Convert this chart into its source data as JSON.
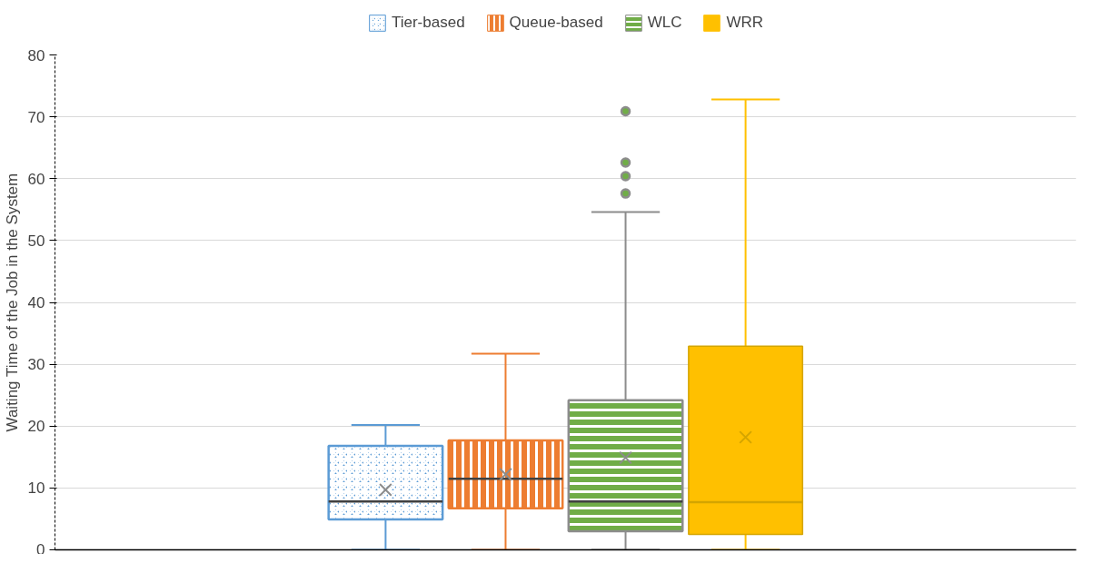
{
  "chart_data": {
    "type": "box",
    "ylabel": "Waiting Time of the Job in the System",
    "categories": [
      null
    ],
    "ylim": [
      0,
      80
    ],
    "yticks": [
      0,
      10,
      20,
      30,
      40,
      50,
      60,
      70,
      80
    ],
    "grid": "y",
    "legend": "top",
    "tick_labels": "y",
    "series": [
      {
        "name": "Tier-based",
        "color": "#5b9bd5",
        "boxes": [
          {
            "low": 0,
            "q1": 4.9,
            "median": 7.8,
            "q3": 16.8,
            "high": 20.2,
            "mean": 9.7
          }
        ]
      },
      {
        "name": "Queue-based",
        "color": "#ed7d31",
        "boxes": [
          {
            "low": 0,
            "q1": 6.7,
            "median": 11.5,
            "q3": 17.7,
            "high": 31.7,
            "mean": 12.2
          }
        ]
      },
      {
        "name": "WLC",
        "color": "#70ad47",
        "boxes": [
          {
            "low": 0,
            "q1": 3.0,
            "median": 7.8,
            "q3": 24.2,
            "high": 54.6,
            "mean": 14.9,
            "outliers": [
              57.6,
              60.4,
              62.6,
              70.9
            ]
          }
        ]
      },
      {
        "name": "WRR",
        "color": "#ffc000",
        "boxes": [
          {
            "low": 0,
            "q1": 2.5,
            "median": 7.7,
            "q3": 32.9,
            "high": 72.8,
            "mean": 18.2
          }
        ]
      }
    ]
  }
}
